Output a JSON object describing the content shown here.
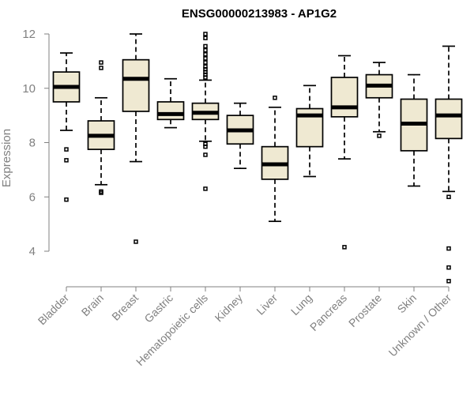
{
  "chart_data": {
    "type": "boxplot",
    "title": "ENSG00000213983 - AP1G2",
    "xlabel": "",
    "ylabel": "Expression",
    "ylim": [
      2.6,
      12.25
    ],
    "yticks": [
      4,
      6,
      8,
      10,
      12
    ],
    "categories": [
      "Bladder",
      "Brain",
      "Breast",
      "Gastric",
      "Hematopoietic cells",
      "Kidney",
      "Liver",
      "Lung",
      "Pancreas",
      "Prostate",
      "Skin",
      "Unknown / Other"
    ],
    "boxes": [
      {
        "category": "Bladder",
        "q1": 9.5,
        "median": 10.05,
        "q3": 10.6,
        "whisker_low": 8.45,
        "whisker_high": 11.3,
        "outliers": [
          7.75,
          7.35,
          5.9
        ]
      },
      {
        "category": "Brain",
        "q1": 7.75,
        "median": 8.25,
        "q3": 8.8,
        "whisker_low": 6.45,
        "whisker_high": 9.65,
        "outliers": [
          10.95,
          10.75,
          6.2,
          6.15
        ]
      },
      {
        "category": "Breast",
        "q1": 9.15,
        "median": 10.35,
        "q3": 11.05,
        "whisker_low": 7.3,
        "whisker_high": 12.0,
        "outliers": [
          4.35
        ]
      },
      {
        "category": "Gastric",
        "q1": 8.85,
        "median": 9.05,
        "q3": 9.5,
        "whisker_low": 8.55,
        "whisker_high": 10.35,
        "outliers": []
      },
      {
        "category": "Hematopoietic cells",
        "q1": 8.85,
        "median": 9.1,
        "q3": 9.45,
        "whisker_low": 8.05,
        "whisker_high": 10.3,
        "outliers": [
          12.0,
          11.85,
          11.55,
          11.4,
          11.25,
          11.1,
          10.95,
          10.8,
          10.7,
          10.6,
          10.5,
          10.4,
          7.95,
          7.85,
          7.55,
          6.3
        ]
      },
      {
        "category": "Kidney",
        "q1": 7.95,
        "median": 8.45,
        "q3": 9.0,
        "whisker_low": 7.05,
        "whisker_high": 9.45,
        "outliers": []
      },
      {
        "category": "Liver",
        "q1": 6.65,
        "median": 7.2,
        "q3": 7.85,
        "whisker_low": 5.1,
        "whisker_high": 9.3,
        "outliers": [
          9.65
        ]
      },
      {
        "category": "Lung",
        "q1": 7.85,
        "median": 9.0,
        "q3": 9.25,
        "whisker_low": 6.75,
        "whisker_high": 10.1,
        "outliers": []
      },
      {
        "category": "Pancreas",
        "q1": 8.95,
        "median": 9.3,
        "q3": 10.4,
        "whisker_low": 7.4,
        "whisker_high": 11.2,
        "outliers": [
          4.15
        ]
      },
      {
        "category": "Prostate",
        "q1": 9.65,
        "median": 10.1,
        "q3": 10.5,
        "whisker_low": 8.4,
        "whisker_high": 10.95,
        "outliers": [
          8.25
        ]
      },
      {
        "category": "Skin",
        "q1": 7.7,
        "median": 8.7,
        "q3": 9.6,
        "whisker_low": 6.4,
        "whisker_high": 10.5,
        "outliers": []
      },
      {
        "category": "Unknown / Other",
        "q1": 8.15,
        "median": 9.0,
        "q3": 9.6,
        "whisker_low": 6.2,
        "whisker_high": 11.55,
        "outliers": [
          6.0,
          4.1,
          3.4,
          2.9
        ]
      }
    ],
    "colors": {
      "box_fill": "#efe9d2",
      "axis": "#808080",
      "line": "#000000"
    }
  }
}
